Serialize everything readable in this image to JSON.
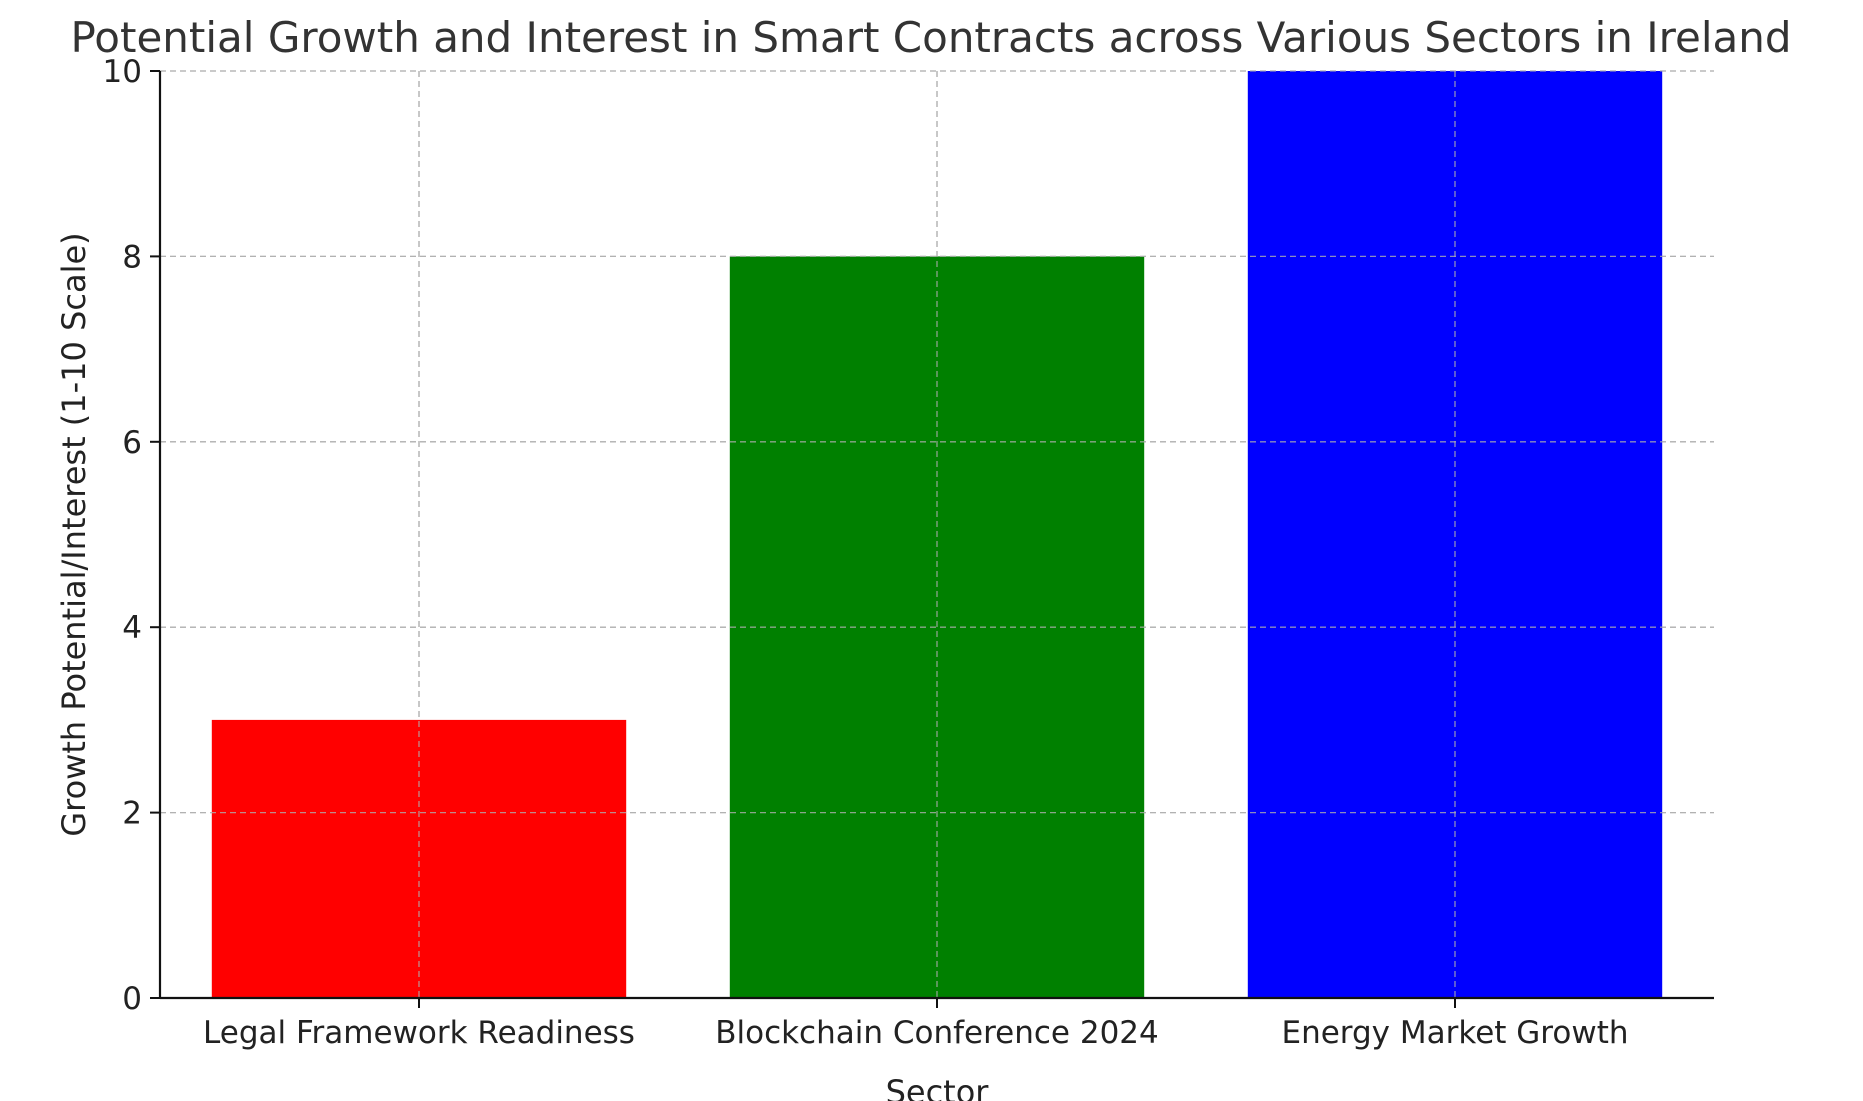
{
  "chart_data": {
    "type": "bar",
    "title": "Potential Growth and Interest in Smart Contracts across Various Sectors in Ireland",
    "xlabel": "Sector",
    "ylabel": "Growth Potential/Interest (1-10 Scale)",
    "categories": [
      "Legal Framework Readiness",
      "Blockchain Conference 2024",
      "Energy Market Growth"
    ],
    "values": [
      3,
      8,
      10
    ],
    "colors": [
      "#ff0000",
      "#008000",
      "#0000ff"
    ],
    "ylim": [
      0,
      10
    ],
    "yticks": [
      0,
      2,
      4,
      6,
      8,
      10
    ],
    "ytick_labels": [
      "0",
      "2",
      "4",
      "6",
      "8",
      "10"
    ],
    "grid": true
  }
}
